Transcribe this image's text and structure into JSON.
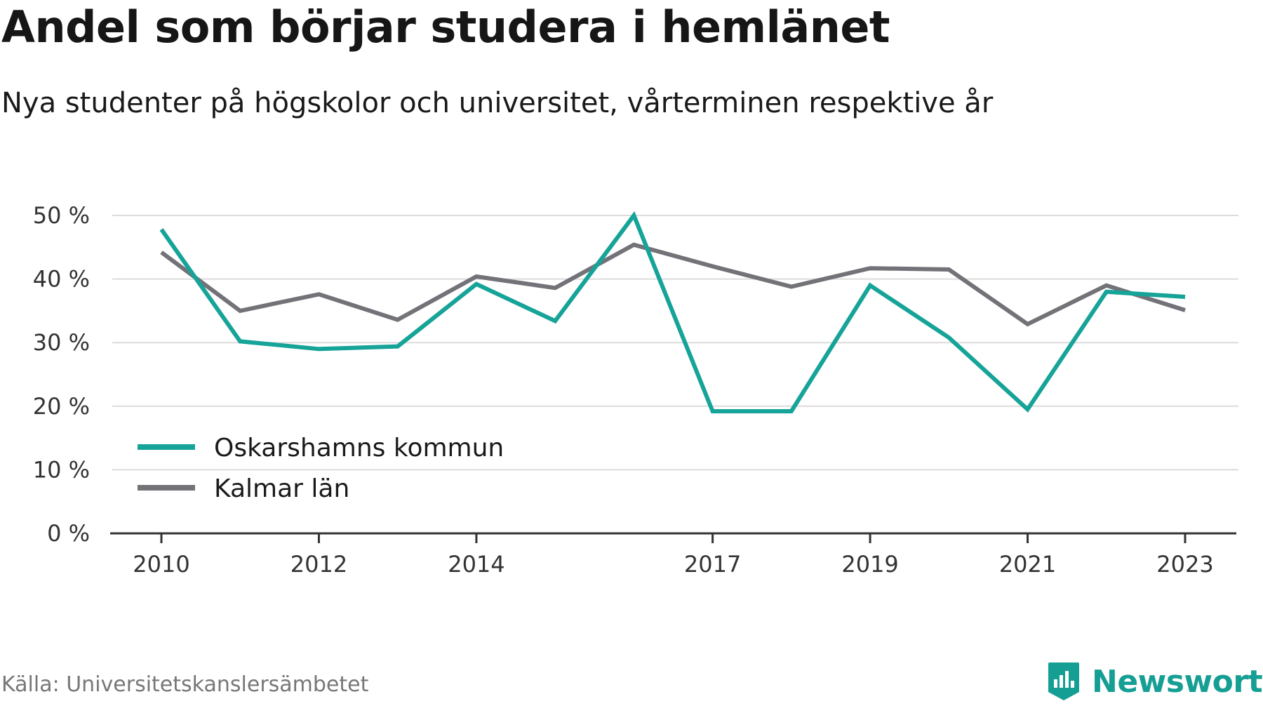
{
  "header": {
    "title": "Andel som börjar studera i hemlänet",
    "subtitle": "Nya studenter på högskolor och universitet, vårterminen respektive år"
  },
  "footer": {
    "source": "Källa: Universitetskanslersämbetet",
    "brand": "Newsworthy",
    "brand_color": "#159e93"
  },
  "chart_data": {
    "type": "line",
    "x": [
      2010,
      2011,
      2012,
      2013,
      2014,
      2015,
      2016,
      2017,
      2018,
      2019,
      2020,
      2021,
      2022,
      2023
    ],
    "x_tick_labels": [
      "2010",
      "2012",
      "2014",
      "2017",
      "2019",
      "2021",
      "2023"
    ],
    "y_ticks": [
      0,
      10,
      20,
      30,
      40,
      50
    ],
    "y_tick_labels": [
      "0 %",
      "10 %",
      "20 %",
      "30 %",
      "40 %",
      "50 %"
    ],
    "ylim": [
      0,
      50
    ],
    "grid": true,
    "legend_position": "bottom-left",
    "series": [
      {
        "name": "Oskarshamns kommun",
        "color": "#16a398",
        "values": [
          47.8,
          30.2,
          29.0,
          29.4,
          39.2,
          33.4,
          50.0,
          19.2,
          19.2,
          39.0,
          30.8,
          19.5,
          38.0,
          37.2
        ]
      },
      {
        "name": "Kalmar län",
        "color": "#737278",
        "values": [
          44.2,
          35.0,
          37.6,
          33.6,
          40.4,
          38.6,
          45.4,
          42.0,
          38.8,
          41.7,
          41.5,
          32.9,
          39.0,
          35.1
        ]
      }
    ]
  }
}
